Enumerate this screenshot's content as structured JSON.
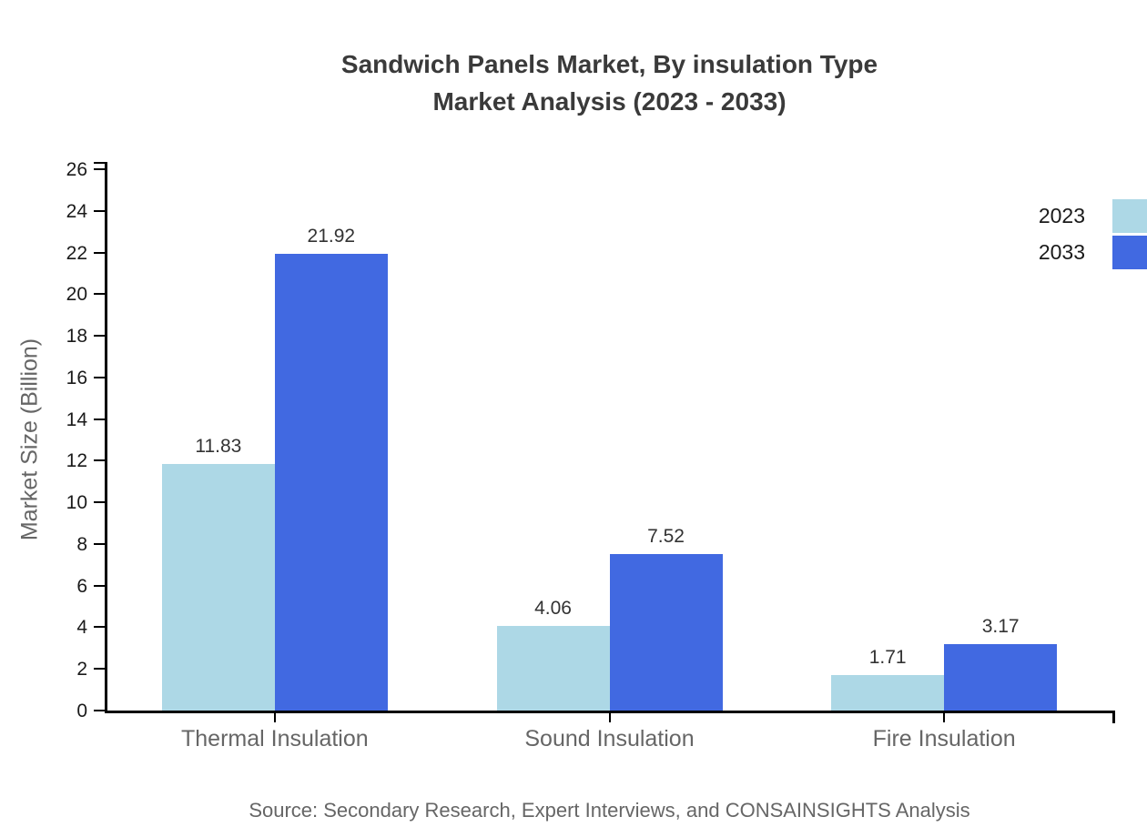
{
  "chart_data": {
    "type": "bar",
    "title": "Sandwich Panels Market, By insulation Type",
    "subtitle": "Market Analysis (2023 - 2033)",
    "categories": [
      "Thermal Insulation",
      "Sound Insulation",
      "Fire Insulation"
    ],
    "series": [
      {
        "name": "2023",
        "color": "#ADD8E6",
        "values": [
          11.83,
          4.06,
          1.71
        ]
      },
      {
        "name": "2033",
        "color": "#4169E1",
        "values": [
          21.92,
          7.52,
          3.17
        ]
      }
    ],
    "xlabel": "",
    "ylabel": "Market Size (Billion)",
    "ylim": [
      0,
      26
    ],
    "ytick_step": 2,
    "grid": false,
    "legend_position": "top-right",
    "value_label_decimals": 2,
    "axis_color": "#000000",
    "title_color": "#3a3a3a",
    "label_color": "#666666",
    "tick_label_color": "#1a1a1a",
    "value_label_color": "#333333"
  },
  "source": {
    "text": "Source: Secondary Research, Expert Interviews, and CONSAINSIGHTS Analysis"
  }
}
